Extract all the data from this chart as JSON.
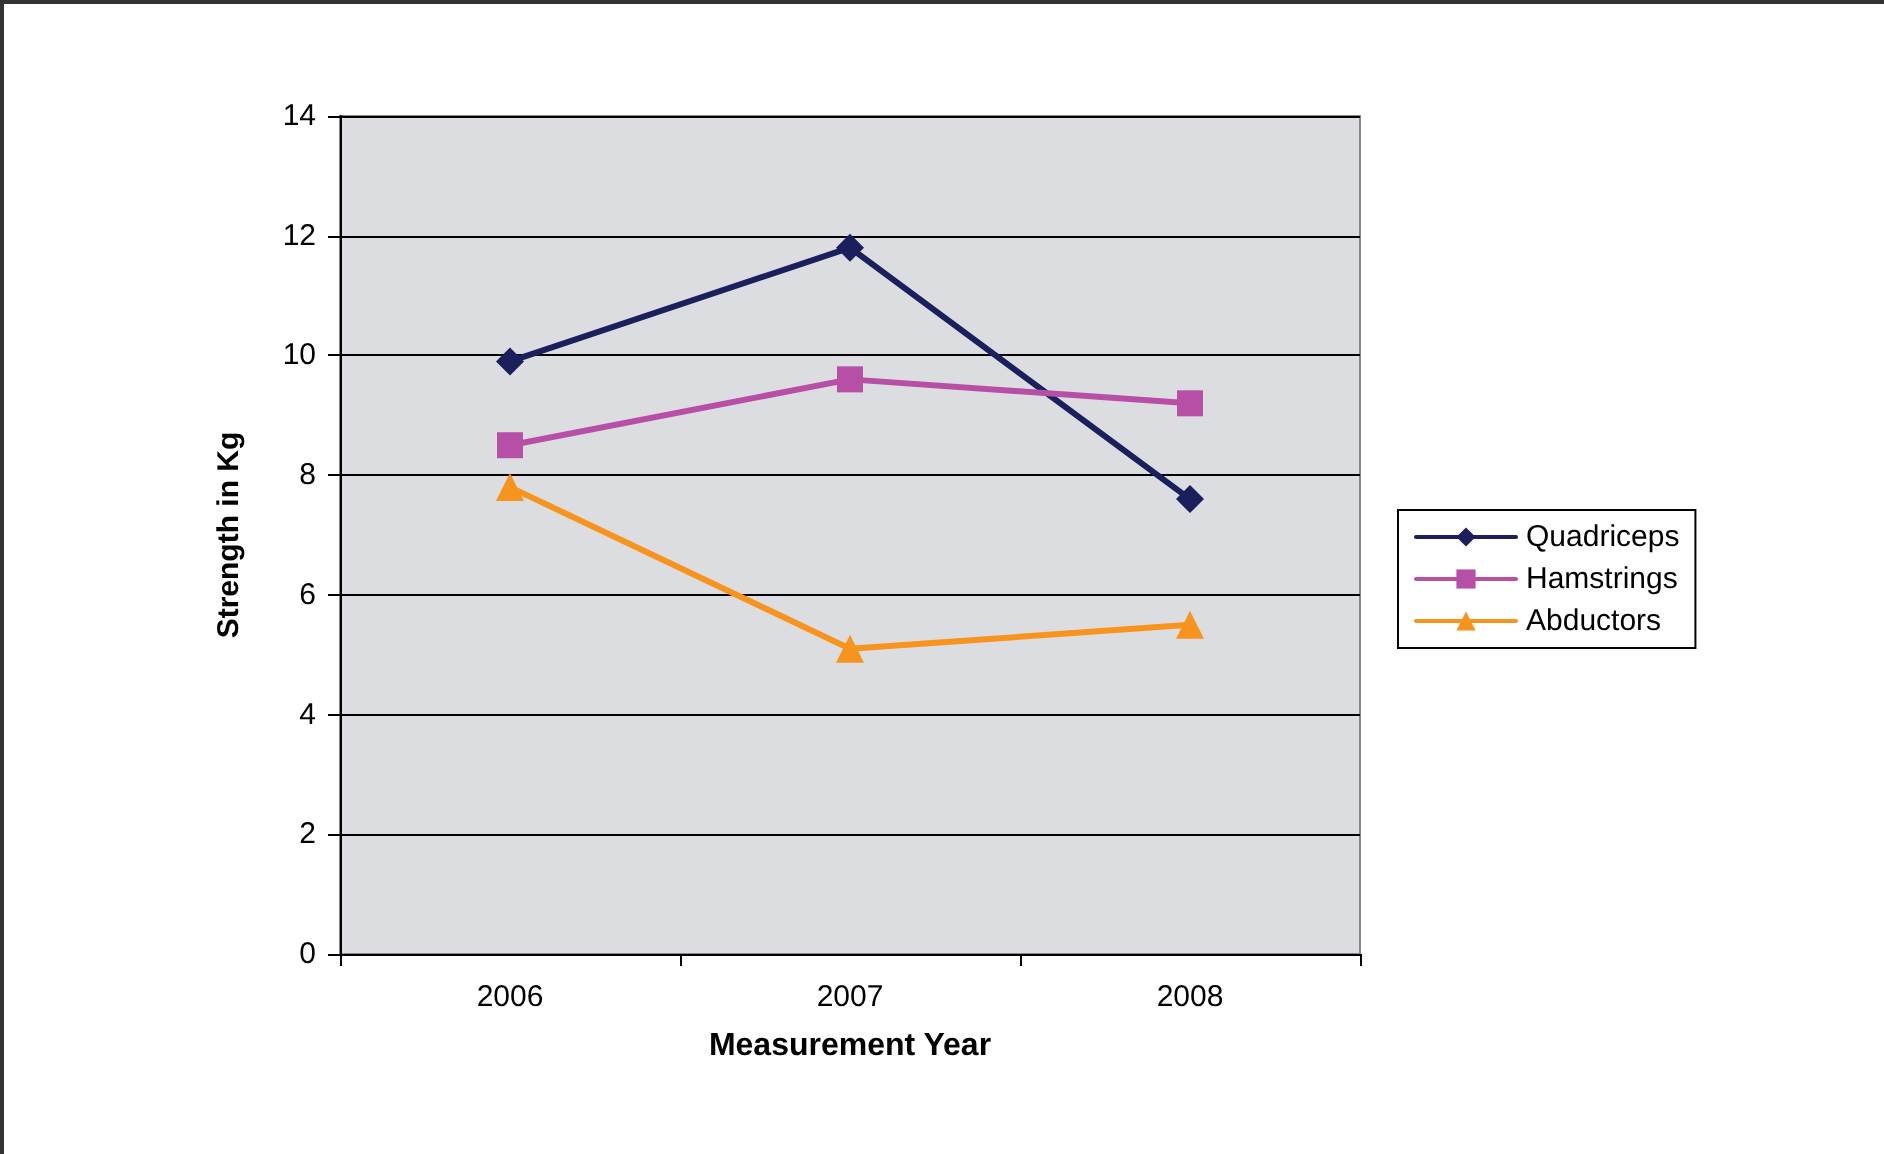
{
  "chart_data": {
    "type": "line",
    "xlabel": "Measurement Year",
    "ylabel": "Strength in Kg",
    "categories": [
      "2006",
      "2007",
      "2008"
    ],
    "series": [
      {
        "name": "Quadriceps",
        "color": "#1b1f5c",
        "marker": "diamond",
        "values": [
          9.9,
          11.8,
          7.6
        ]
      },
      {
        "name": "Hamstrings",
        "color": "#b84fa6",
        "marker": "square",
        "values": [
          8.5,
          9.6,
          9.2
        ]
      },
      {
        "name": "Abductors",
        "color": "#f7941d",
        "marker": "triangle",
        "values": [
          7.8,
          5.1,
          5.5
        ]
      }
    ],
    "ylim": [
      0,
      14
    ],
    "yticks": [
      0,
      2,
      4,
      6,
      8,
      10,
      12,
      14
    ],
    "grid": "y",
    "legend": "right",
    "line_style": "solid"
  }
}
